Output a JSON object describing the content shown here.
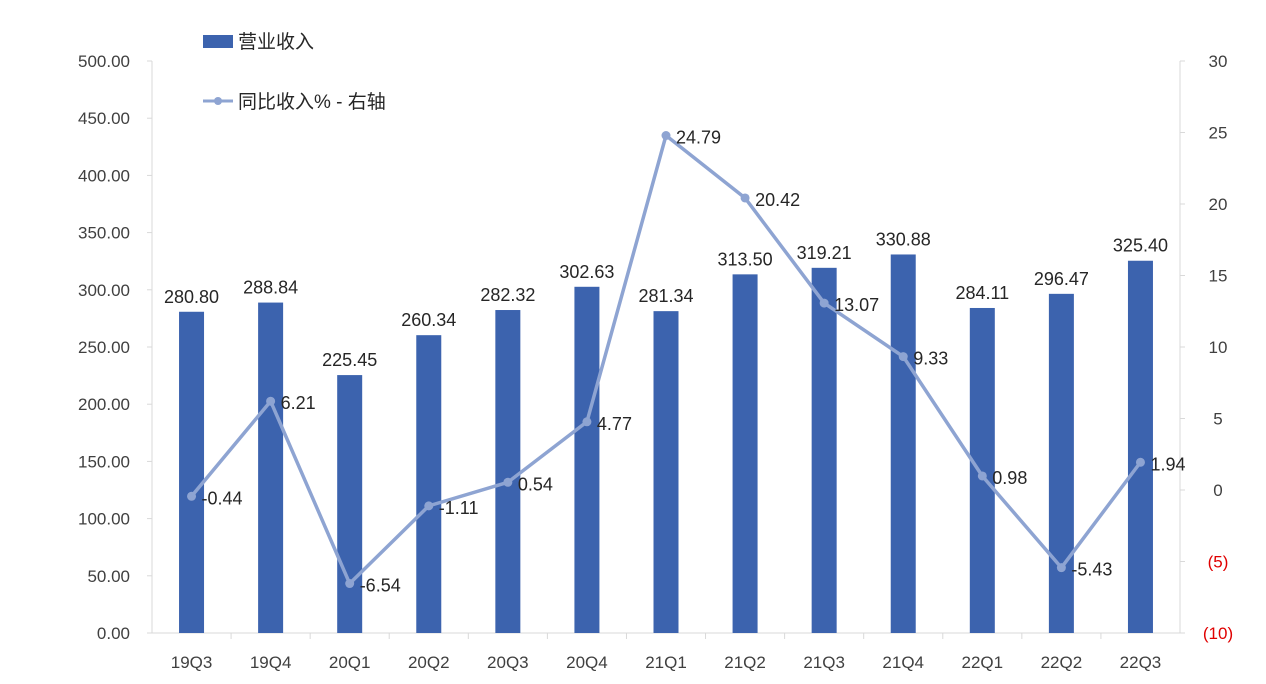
{
  "chart_data": {
    "type": "bar+line",
    "categories": [
      "19Q3",
      "19Q4",
      "20Q1",
      "20Q2",
      "20Q3",
      "20Q4",
      "21Q1",
      "21Q2",
      "21Q3",
      "21Q4",
      "22Q1",
      "22Q2",
      "22Q3"
    ],
    "series": [
      {
        "name": "营业收入",
        "type": "bar",
        "axis": "left",
        "values": [
          280.8,
          288.84,
          225.45,
          260.34,
          282.32,
          302.63,
          281.34,
          313.5,
          319.21,
          330.88,
          284.11,
          296.47,
          325.4
        ],
        "labels": [
          "280.80",
          "288.84",
          "225.45",
          "260.34",
          "282.32",
          "302.63",
          "281.34",
          "313.50",
          "319.21",
          "330.88",
          "284.11",
          "296.47",
          "325.40"
        ]
      },
      {
        "name": "同比收入% - 右轴",
        "type": "line",
        "axis": "right",
        "values": [
          -0.44,
          6.21,
          -6.54,
          -1.11,
          0.54,
          4.77,
          24.79,
          20.42,
          13.07,
          9.33,
          0.98,
          -5.43,
          1.94
        ],
        "labels": [
          "-0.44",
          "6.21",
          "-6.54",
          "-1.11",
          "0.54",
          "4.77",
          "24.79",
          "20.42",
          "13.07",
          "9.33",
          "0.98",
          "-5.43",
          "1.94"
        ]
      }
    ],
    "y_left": {
      "min": 0,
      "max": 500,
      "step": 50,
      "tick_labels": [
        "0.00",
        "50.00",
        "100.00",
        "150.00",
        "200.00",
        "250.00",
        "300.00",
        "350.00",
        "400.00",
        "450.00",
        "500.00"
      ]
    },
    "y_right": {
      "min": -10,
      "max": 30,
      "step": 5,
      "tick_labels": [
        "(10)",
        "(5)",
        "0",
        "5",
        "10",
        "15",
        "20",
        "25",
        "30"
      ],
      "negative_color": "#e00000"
    },
    "colors": {
      "bar": "#3c63ae",
      "line": "#8ea4d2",
      "axis": "#d9d9d9"
    },
    "legend": {
      "position": "top-left"
    },
    "grid": false
  }
}
